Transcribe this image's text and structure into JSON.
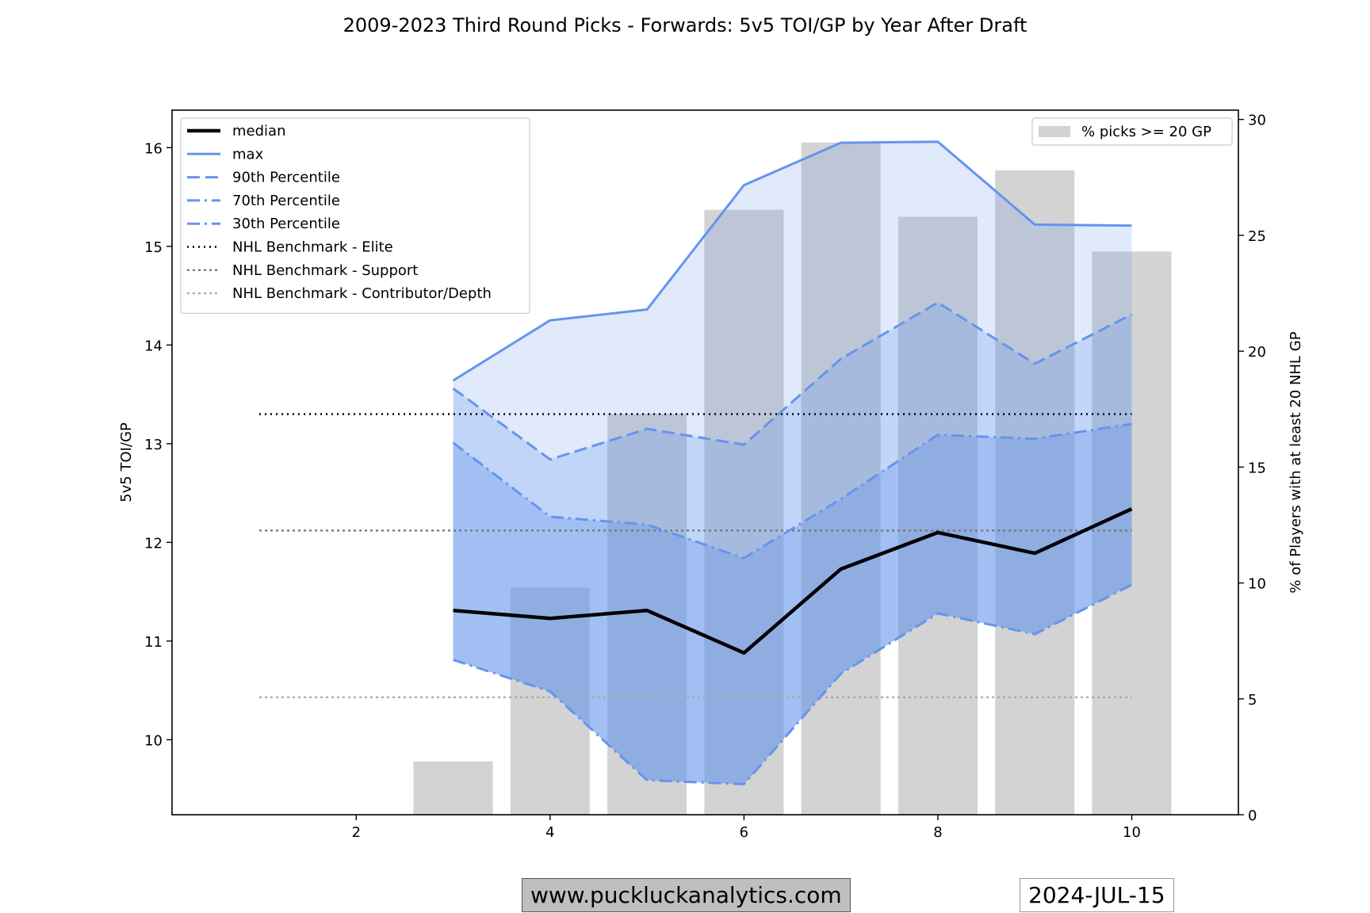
{
  "chart_data": {
    "type": "line",
    "title": "2009-2023 Third Round Picks - Forwards: 5v5 TOI/GP by Year After Draft",
    "ylabel": "5v5 TOI/GP",
    "y2label": "% of Players with at least 20 NHL GP",
    "xlim": [
      0.1,
      11.1
    ],
    "ylim": [
      9.24,
      16.38
    ],
    "y2lim": [
      0,
      30.4
    ],
    "xticks": [
      2,
      4,
      6,
      8,
      10
    ],
    "yticks": [
      10,
      11,
      12,
      13,
      14,
      15,
      16
    ],
    "y2ticks": [
      0,
      5,
      10,
      15,
      20,
      25,
      30
    ],
    "x": [
      3,
      4,
      5,
      6,
      7,
      8,
      9,
      10
    ],
    "series": [
      {
        "name": "median",
        "style": "solid-thick",
        "color": "#000000",
        "values": [
          11.31,
          11.23,
          11.31,
          10.88,
          11.73,
          12.1,
          11.89,
          12.34
        ]
      },
      {
        "name": "max",
        "style": "solid",
        "color": "#6495ED",
        "values": [
          13.64,
          14.25,
          14.36,
          15.62,
          16.05,
          16.06,
          15.22,
          15.21
        ]
      },
      {
        "name": "90th Percentile",
        "style": "dashed",
        "color": "#6495ED",
        "values": [
          13.56,
          12.84,
          13.15,
          12.99,
          13.86,
          14.43,
          13.81,
          14.31
        ]
      },
      {
        "name": "70th Percentile",
        "style": "dashdot",
        "color": "#6495ED",
        "values": [
          13.01,
          12.26,
          12.18,
          11.84,
          12.44,
          13.09,
          13.05,
          13.2
        ]
      },
      {
        "name": "30th Percentile",
        "style": "dashdot",
        "color": "#6495ED",
        "values": [
          10.81,
          10.49,
          9.59,
          9.55,
          10.67,
          11.28,
          11.07,
          11.57
        ]
      }
    ],
    "benchmarks": [
      {
        "name": "NHL Benchmark - Elite",
        "value": 13.3,
        "color": "#000000"
      },
      {
        "name": "NHL Benchmark - Support",
        "value": 12.12,
        "color": "#777777"
      },
      {
        "name": "NHL Benchmark - Contributor/Depth",
        "value": 10.43,
        "color": "#aaaaaa"
      }
    ],
    "benchmark_x": [
      1,
      10
    ],
    "bars": {
      "name": "% picks >= 20 GP",
      "color": "#d3d3d3",
      "x": [
        3,
        4,
        5,
        6,
        7,
        8,
        9,
        10
      ],
      "values": [
        2.3,
        9.8,
        17.3,
        26.1,
        29.0,
        25.8,
        27.8,
        24.3
      ]
    },
    "legend_position": "upper-left",
    "bar_legend_position": "upper-right"
  },
  "footer": {
    "website": "www.puckluckanalytics.com",
    "date": "2024-JUL-15"
  }
}
